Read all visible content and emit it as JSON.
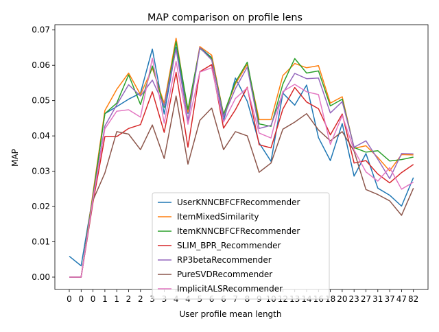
{
  "chart_data": {
    "type": "line",
    "title": "MAP comparison on profile lens",
    "xlabel": "User profile mean length",
    "ylabel": "MAP",
    "categories": [
      "0",
      "0",
      "0",
      "1",
      "1",
      "2",
      "2",
      "3",
      "3",
      "4",
      "4",
      "5",
      "6",
      "6",
      "7",
      "8",
      "9",
      "10",
      "12",
      "13",
      "14",
      "16",
      "18",
      "20",
      "23",
      "27",
      "31",
      "37",
      "47",
      "82"
    ],
    "ylim": [
      -0.0035,
      0.0715
    ],
    "yticks": [
      "0.00",
      "0.01",
      "0.02",
      "0.03",
      "0.04",
      "0.05",
      "0.06",
      "0.07"
    ],
    "grid": false,
    "legend": "lower-center",
    "series": [
      {
        "name": "UserKNNCBFCFRecommender",
        "color": "#1f77b4",
        "values": [
          0.0059,
          0.0032,
          0.0232,
          0.0463,
          0.0483,
          0.0504,
          0.0521,
          0.0646,
          0.0462,
          0.0651,
          0.0464,
          0.0651,
          0.0622,
          0.0443,
          0.0564,
          0.0498,
          0.038,
          0.0328,
          0.0521,
          0.0487,
          0.0544,
          0.0395,
          0.033,
          0.0435,
          0.0286,
          0.035,
          0.0252,
          0.0232,
          0.0201,
          0.0282
        ]
      },
      {
        "name": "ItemMixedSimilarity",
        "color": "#ff7f0e",
        "values": [
          0.0,
          0.0,
          0.0239,
          0.0472,
          0.0532,
          0.0578,
          0.0517,
          0.0592,
          0.0492,
          0.0677,
          0.0467,
          0.0653,
          0.0629,
          0.0461,
          0.0547,
          0.0603,
          0.0446,
          0.0446,
          0.0571,
          0.0605,
          0.0593,
          0.0599,
          0.0493,
          0.0511,
          0.0365,
          0.0372,
          0.0339,
          0.0301,
          0.0347,
          0.0346
        ]
      },
      {
        "name": "ItemKNNCBFCFRecommender",
        "color": "#2ca02c",
        "values": [
          0.0,
          0.0,
          0.0232,
          0.0463,
          0.0493,
          0.0573,
          0.0489,
          0.0598,
          0.0481,
          0.0667,
          0.0475,
          0.0648,
          0.062,
          0.0461,
          0.0552,
          0.0609,
          0.0434,
          0.0427,
          0.0547,
          0.0619,
          0.0578,
          0.0584,
          0.0485,
          0.0504,
          0.0367,
          0.0354,
          0.0358,
          0.0329,
          0.0333,
          0.034
        ]
      },
      {
        "name": "SLIM_BPR_Recommender",
        "color": "#d62728",
        "values": [
          0.0,
          0.0,
          0.0212,
          0.0398,
          0.0398,
          0.0421,
          0.0432,
          0.0525,
          0.041,
          0.058,
          0.0368,
          0.0582,
          0.0602,
          0.0422,
          0.0474,
          0.0538,
          0.0375,
          0.0366,
          0.0476,
          0.0537,
          0.0496,
          0.0477,
          0.0403,
          0.0462,
          0.0323,
          0.033,
          0.0292,
          0.0267,
          0.0296,
          0.0319
        ]
      },
      {
        "name": "RP3betaRecommender",
        "color": "#9467bd",
        "values": [
          0.0,
          0.0,
          0.0225,
          0.0428,
          0.0488,
          0.0545,
          0.0513,
          0.0558,
          0.0485,
          0.0646,
          0.0443,
          0.065,
          0.0615,
          0.0454,
          0.0534,
          0.0595,
          0.0421,
          0.043,
          0.0521,
          0.0577,
          0.0562,
          0.0564,
          0.0465,
          0.0497,
          0.0368,
          0.0386,
          0.0334,
          0.0279,
          0.035,
          0.0349
        ]
      },
      {
        "name": "PureSVDRecommender",
        "color": "#8c564b",
        "values": [
          0.0,
          0.0,
          0.0218,
          0.0295,
          0.0412,
          0.0405,
          0.0361,
          0.0431,
          0.0336,
          0.0513,
          0.032,
          0.0444,
          0.0479,
          0.0361,
          0.0412,
          0.04,
          0.0297,
          0.0323,
          0.0419,
          0.0439,
          0.0463,
          0.0417,
          0.0386,
          0.0412,
          0.0357,
          0.0248,
          0.0234,
          0.0216,
          0.0175,
          0.0252
        ]
      },
      {
        "name": "ImplicitALSRecommender",
        "color": "#e377c2",
        "values": [
          0.0,
          0.0,
          0.0221,
          0.042,
          0.047,
          0.0474,
          0.0453,
          0.062,
          0.0436,
          0.0611,
          0.0433,
          0.0581,
          0.0593,
          0.0439,
          0.0506,
          0.0536,
          0.0408,
          0.0394,
          0.0526,
          0.0546,
          0.0525,
          0.0517,
          0.0376,
          0.0458,
          0.036,
          0.0298,
          0.0272,
          0.031,
          0.0249,
          0.0269
        ]
      }
    ]
  }
}
